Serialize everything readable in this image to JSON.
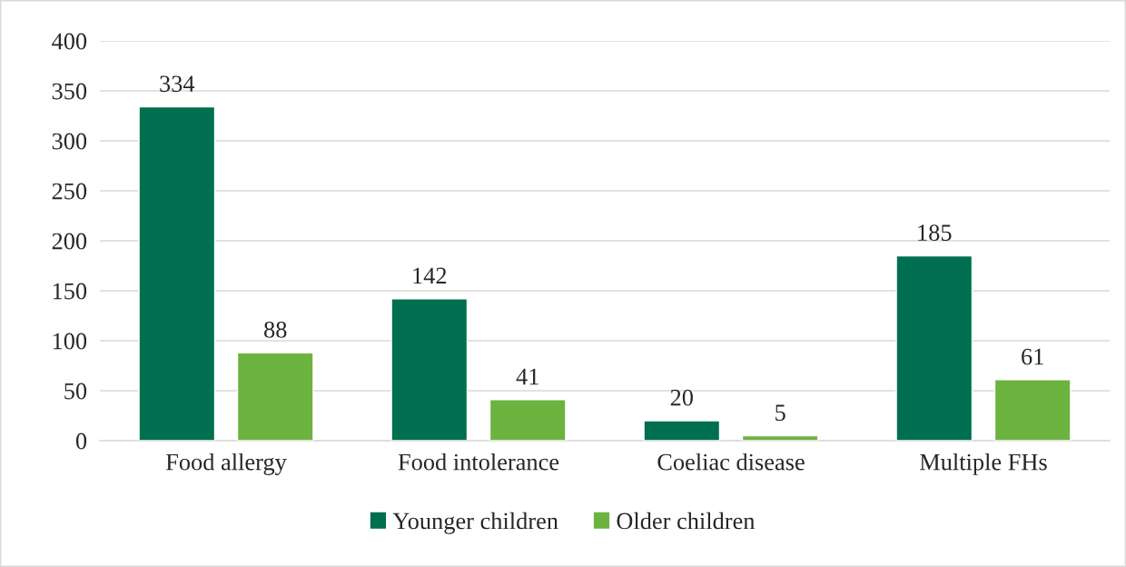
{
  "chart_data": {
    "type": "bar",
    "categories": [
      "Food allergy",
      "Food intolerance",
      "Coeliac disease",
      "Multiple FHs"
    ],
    "series": [
      {
        "name": "Younger children",
        "color": "#006f4f",
        "values": [
          334,
          142,
          20,
          185
        ]
      },
      {
        "name": "Older children",
        "color": "#6db33f",
        "values": [
          88,
          41,
          5,
          61
        ]
      }
    ],
    "ylim": [
      0,
      400
    ],
    "yticks": [
      0,
      50,
      100,
      150,
      200,
      250,
      300,
      350,
      400
    ],
    "grid": "y",
    "legend": "bottom",
    "data_labels": true
  }
}
